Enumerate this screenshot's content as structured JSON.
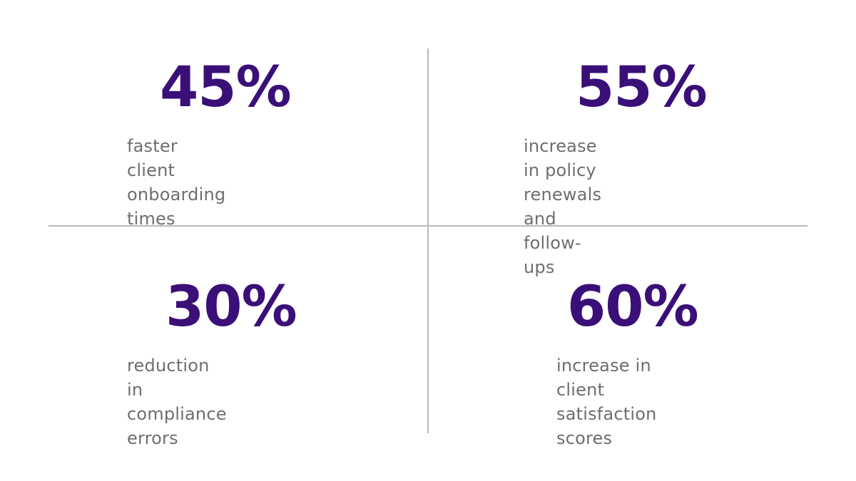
{
  "stats": [
    {
      "value": "45%",
      "line1": "faster client",
      "line2": "onboarding times"
    },
    {
      "value": "55%",
      "line1": "increase in policy renewals",
      "line2": "and follow-ups"
    },
    {
      "value": "30%",
      "line1": "reduction in compliance",
      "line2": "errors"
    },
    {
      "value": "60%",
      "line1": "increase in client",
      "line2": "satisfaction scores"
    }
  ],
  "colors": {
    "value_text": "#3a0f78",
    "description_text": "#6e6e6e",
    "divider": "#b9b9b9",
    "background": "#ffffff"
  }
}
